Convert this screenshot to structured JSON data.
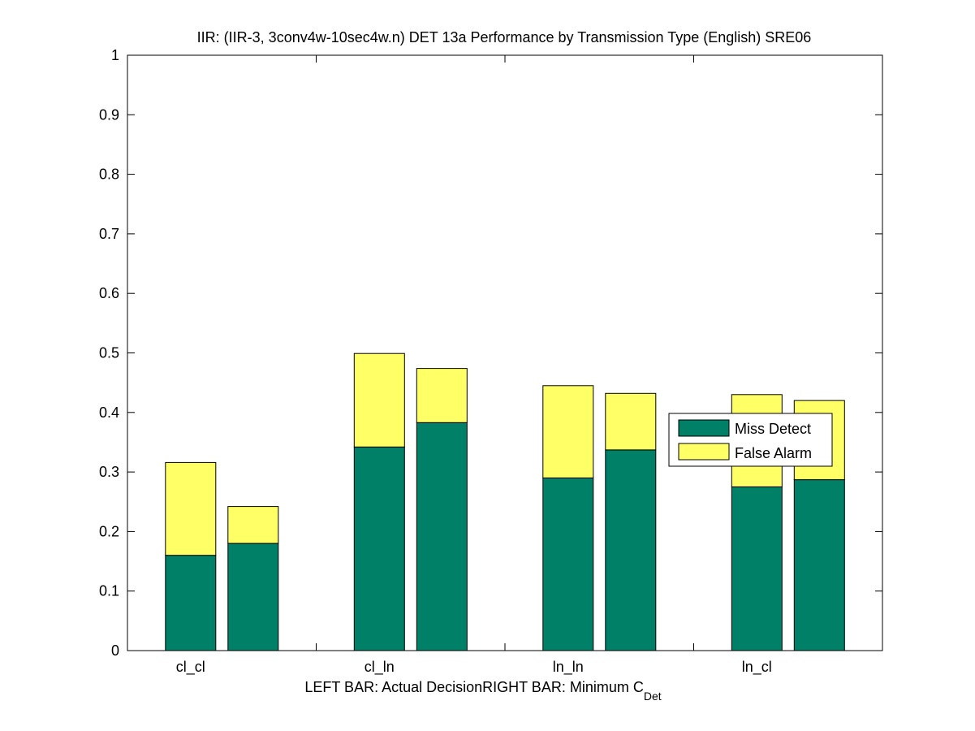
{
  "chart_data": {
    "type": "bar",
    "stacked": true,
    "title": "IIR: (IIR-3, 3conv4w-10sec4w.n) DET 13a Performance by Transmission Type (English) SRE06",
    "xlabel": {
      "left": "LEFT BAR: Actual Decision",
      "right": "RIGHT BAR: Minimum C",
      "right_subscript": "Det"
    },
    "ylabel": "",
    "ylim": [
      0,
      1
    ],
    "yticks": [
      "0",
      "0.1",
      "0.2",
      "0.3",
      "0.4",
      "0.5",
      "0.6",
      "0.7",
      "0.8",
      "0.9",
      "1"
    ],
    "categories": [
      "cl_cl",
      "cl_ln",
      "ln_ln",
      "ln_cl"
    ],
    "bars_per_category": [
      "Actual Decision",
      "Minimum CDet"
    ],
    "series": [
      {
        "name": "Miss Detect",
        "color": "#008066",
        "values": [
          [
            0.16,
            0.18
          ],
          [
            0.342,
            0.383
          ],
          [
            0.29,
            0.337
          ],
          [
            0.275,
            0.287
          ]
        ]
      },
      {
        "name": "False Alarm",
        "color": "#ffff66",
        "values": [
          [
            0.156,
            0.062
          ],
          [
            0.157,
            0.091
          ],
          [
            0.155,
            0.095
          ],
          [
            0.155,
            0.133
          ]
        ]
      }
    ],
    "grid": false,
    "legend": {
      "placement": "center-right",
      "entries": [
        "Miss Detect",
        "False Alarm"
      ]
    }
  }
}
